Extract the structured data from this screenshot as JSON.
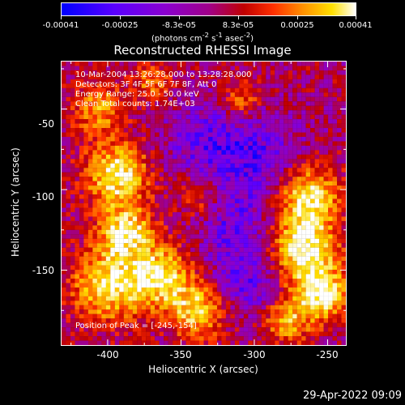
{
  "colorbar": {
    "ticks": [
      "-0.00041",
      "-0.00025",
      "-8.3e-05",
      "8.3e-05",
      "0.00025",
      "0.00041"
    ],
    "unit_main": "(photons cm",
    "unit_sup1": "-2",
    "unit_mid": " s",
    "unit_sup2": "-1",
    "unit_tail": " asec",
    "unit_sup3": "-2",
    "unit_close": ")"
  },
  "chart_data": {
    "type": "heatmap",
    "title": "Reconstructed RHESSI Image",
    "xlabel": "Heliocentric X (arcsec)",
    "ylabel": "Heliocentric Y (arcsec)",
    "xlim": [
      -432,
      -237
    ],
    "ylim": [
      -197,
      -20
    ],
    "xticks": [
      "-400",
      "-350",
      "-300",
      "-250"
    ],
    "yticks": [
      "-50",
      "-100",
      "-150"
    ],
    "value_range": [
      -0.00041,
      0.00041
    ],
    "colormap": [
      "#0000ff",
      "#5a00ff",
      "#8a00d0",
      "#a0008a",
      "#c00000",
      "#ff3000",
      "#ff9000",
      "#ffe000",
      "#ffffff"
    ],
    "peak_position": [
      -245,
      -154
    ]
  },
  "annotations": [
    "10-Mar-2004 13:26:28.000 to 13:28:28.000",
    "Detectors: 3F 4F 5F 6F 7F 8F, Att 0",
    "Energy Range: 25.0 - 50.0 keV",
    "Clean     Total counts: 1.74E+03"
  ],
  "peak_label": "Position of Peak = [-245,-154]",
  "timestamp": "29-Apr-2022 09:09"
}
